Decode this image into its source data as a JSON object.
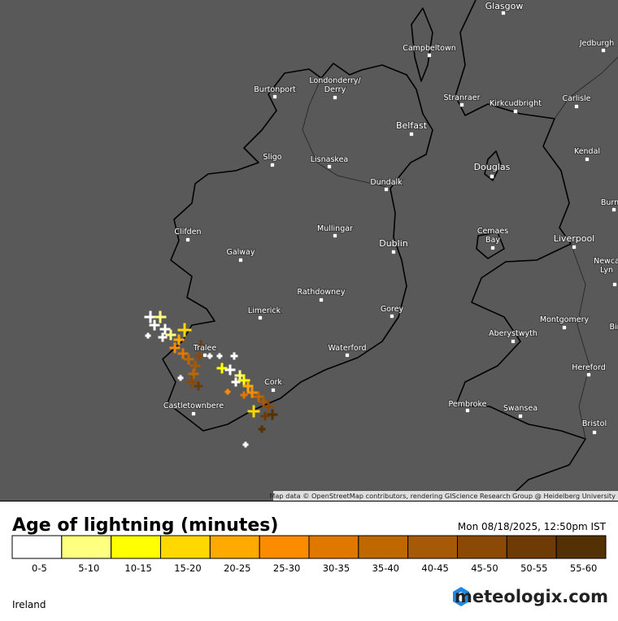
{
  "map": {
    "cities": [
      {
        "lines": [
          "Glasgow"
        ]
      },
      {
        "lines": [
          "Campbeltown"
        ]
      },
      {
        "lines": [
          "Jedburgh"
        ]
      },
      {
        "lines": [
          "Burtonport"
        ]
      },
      {
        "lines": [
          "Londonderry/",
          "Derry"
        ]
      },
      {
        "lines": [
          "Stranraer"
        ]
      },
      {
        "lines": [
          "Kirkcudbright"
        ]
      },
      {
        "lines": [
          "Carlisle"
        ]
      },
      {
        "lines": [
          "Belfast"
        ]
      },
      {
        "lines": [
          "Sligo"
        ]
      },
      {
        "lines": [
          "Lisnaskea"
        ]
      },
      {
        "lines": [
          "Kendal"
        ]
      },
      {
        "lines": [
          "Douglas"
        ]
      },
      {
        "lines": [
          "Dundalk"
        ]
      },
      {
        "lines": [
          "Burn"
        ]
      },
      {
        "lines": [
          "Clifden"
        ]
      },
      {
        "lines": [
          "Mullingar"
        ]
      },
      {
        "lines": [
          "Cemaes",
          "Bay"
        ]
      },
      {
        "lines": [
          "Liverpool"
        ]
      },
      {
        "lines": [
          "Dublin"
        ]
      },
      {
        "lines": [
          "Newca",
          "Lyn"
        ]
      },
      {
        "lines": [
          "Galway"
        ]
      },
      {
        "lines": [
          "Rathdowney"
        ]
      },
      {
        "lines": [
          "Limerick"
        ]
      },
      {
        "lines": [
          "Gorey"
        ]
      },
      {
        "lines": [
          "Montgomery"
        ]
      },
      {
        "lines": [
          "Bir"
        ]
      },
      {
        "lines": [
          "Aberystwyth"
        ]
      },
      {
        "lines": [
          "Tralee"
        ]
      },
      {
        "lines": [
          "Waterford"
        ]
      },
      {
        "lines": [
          "Hereford"
        ]
      },
      {
        "lines": [
          "Cork"
        ]
      },
      {
        "lines": [
          "Pembroke"
        ]
      },
      {
        "lines": [
          "Castletownbere"
        ]
      },
      {
        "lines": [
          "Swansea"
        ]
      },
      {
        "lines": [
          "Bristol"
        ]
      }
    ],
    "attribution": "Map data © OpenStreetMap contributors, rendering GIScience Research Group @ Heidelberg University"
  },
  "legend": {
    "title": "Age of lightning (minutes)",
    "timestamp": "Mon 08/18/2025, 12:50pm IST",
    "bins": [
      {
        "label": "0-5",
        "color": "#ffffff"
      },
      {
        "label": "5-10",
        "color": "#ffff80"
      },
      {
        "label": "10-15",
        "color": "#ffff00"
      },
      {
        "label": "15-20",
        "color": "#ffd800"
      },
      {
        "label": "20-25",
        "color": "#ffaa00"
      },
      {
        "label": "25-30",
        "color": "#fb8c00"
      },
      {
        "label": "30-35",
        "color": "#e07800"
      },
      {
        "label": "35-40",
        "color": "#c06800"
      },
      {
        "label": "40-45",
        "color": "#a65a08"
      },
      {
        "label": "45-50",
        "color": "#8a4a06"
      },
      {
        "label": "50-55",
        "color": "#6e3a06"
      },
      {
        "label": "55-60",
        "color": "#543005"
      }
    ]
  },
  "region": "Ireland",
  "brand": "meteologix.com"
}
